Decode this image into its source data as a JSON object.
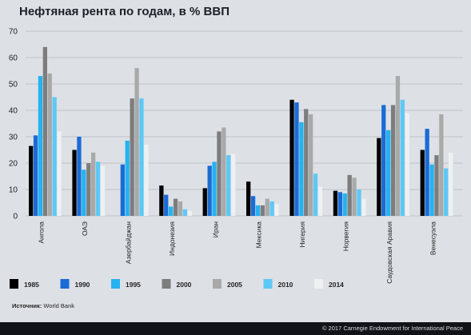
{
  "title": "Нефтяная рента по годам, в % ВВП",
  "source_label": "Источник:",
  "source_value": "World Bank",
  "footer": "© 2017 Carnegie Endowment for International Peace",
  "colors": {
    "background": "#dde1e6",
    "grid": "#b3b8bf",
    "series": [
      "#000000",
      "#1a6bd6",
      "#26b2f0",
      "#7d7d7d",
      "#a9a9a9",
      "#5ec8f5",
      "#eef0f2"
    ]
  },
  "chart_data": {
    "type": "bar",
    "title": "Нефтяная рента по годам, в % ВВП",
    "xlabel": "",
    "ylabel": "",
    "ylim": [
      0,
      70
    ],
    "yticks": [
      0,
      10,
      20,
      30,
      40,
      50,
      60,
      70
    ],
    "grid": true,
    "legend_position": "bottom",
    "categories": [
      "Ангола",
      "ОАЭ",
      "Азербайджан",
      "Индонезия",
      "Иран",
      "Мексика",
      "Нигерия",
      "Норвегия",
      "Саудовская Аравия",
      "Венесуэла"
    ],
    "series": [
      {
        "name": "1985",
        "values": [
          26.5,
          25,
          null,
          11.5,
          10.5,
          13,
          44,
          9.5,
          29.5,
          25
        ]
      },
      {
        "name": "1990",
        "values": [
          30.5,
          30,
          19.5,
          8,
          19,
          7.5,
          43,
          9,
          42,
          33
        ]
      },
      {
        "name": "1995",
        "values": [
          53,
          17.5,
          28.5,
          3.5,
          20.5,
          4,
          35.5,
          8.5,
          32.5,
          19.5
        ]
      },
      {
        "name": "2000",
        "values": [
          64,
          20,
          44.5,
          6.5,
          32,
          4,
          40.5,
          15.5,
          42,
          23
        ]
      },
      {
        "name": "2005",
        "values": [
          54,
          24,
          56,
          5.5,
          33.5,
          6.5,
          38.5,
          14.5,
          53,
          38.5
        ]
      },
      {
        "name": "2010",
        "values": [
          45,
          20.5,
          44.5,
          2.5,
          23,
          5.5,
          16,
          10,
          44,
          18
        ]
      },
      {
        "name": "2014",
        "values": [
          32,
          19,
          27,
          2,
          23.5,
          4.5,
          11,
          6.5,
          39,
          24
        ]
      }
    ]
  }
}
